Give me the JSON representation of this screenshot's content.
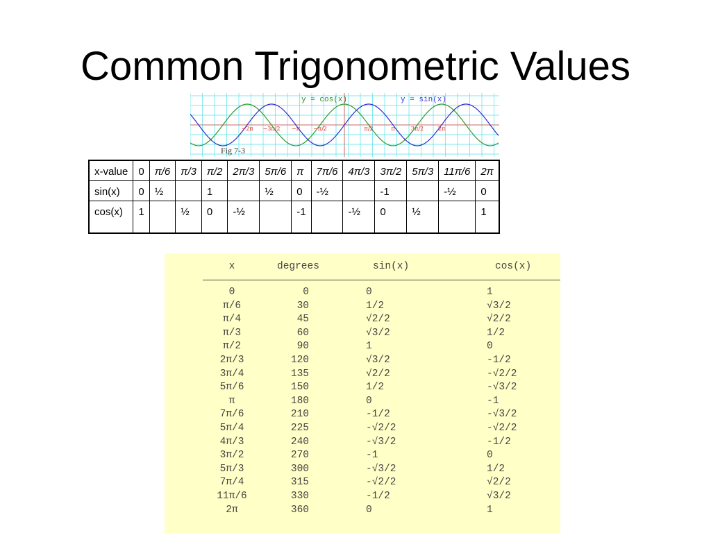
{
  "title": "Common Trigonometric Values",
  "graph": {
    "cos_label": "y = cos(x)",
    "sin_label": "y = sin(x)",
    "tick_labels": [
      "−2π",
      "−3π/2",
      "−π",
      "−π/2",
      "π/2",
      "π",
      "3π/2",
      "2π"
    ],
    "caption": "Fig 7-3",
    "cos_color": "#2e9a2e",
    "sin_color": "#2a2ad0",
    "grid_color": "#55e0e8",
    "tick_color": "#e02020"
  },
  "values_table": {
    "rows": [
      [
        "x-value",
        "0",
        "π/6",
        "π/3",
        "π/2",
        "2π/3",
        "5π/6",
        "π",
        "7π/6",
        "4π/3",
        "3π/2",
        "5π/3",
        "11π/6",
        "2π"
      ],
      [
        "sin(x)",
        "0",
        "½",
        "",
        "1",
        "",
        "½",
        "0",
        "-½",
        "",
        "-1",
        "",
        "-½",
        "0"
      ],
      [
        "cos(x)",
        "1",
        "",
        "½",
        "0",
        "-½",
        "",
        "-1",
        "",
        "-½",
        "0",
        "½",
        "",
        "1"
      ]
    ]
  },
  "reference_table": {
    "background": "#ffffc8",
    "headers": [
      "x",
      "degrees",
      "sin(x)",
      "cos(x)"
    ],
    "rows": [
      [
        "0",
        "0",
        "0",
        "1"
      ],
      [
        "π/6",
        "30",
        "1/2",
        "√3/2"
      ],
      [
        "π/4",
        "45",
        "√2/2",
        "√2/2"
      ],
      [
        "π/3",
        "60",
        "√3/2",
        "1/2"
      ],
      [
        "π/2",
        "90",
        "1",
        "0"
      ],
      [
        "2π/3",
        "120",
        "√3/2",
        "-1/2"
      ],
      [
        "3π/4",
        "135",
        "√2/2",
        "-√2/2"
      ],
      [
        "5π/6",
        "150",
        "1/2",
        "-√3/2"
      ],
      [
        "π",
        "180",
        "0",
        "-1"
      ],
      [
        "7π/6",
        "210",
        "-1/2",
        "-√3/2"
      ],
      [
        "5π/4",
        "225",
        "-√2/2",
        "-√2/2"
      ],
      [
        "4π/3",
        "240",
        "-√3/2",
        "-1/2"
      ],
      [
        "3π/2",
        "270",
        "-1",
        "0"
      ],
      [
        "5π/3",
        "300",
        "-√3/2",
        "1/2"
      ],
      [
        "7π/4",
        "315",
        "-√2/2",
        "√2/2"
      ],
      [
        "11π/6",
        "330",
        "-1/2",
        "√3/2"
      ],
      [
        "2π",
        "360",
        "0",
        "1"
      ]
    ]
  }
}
